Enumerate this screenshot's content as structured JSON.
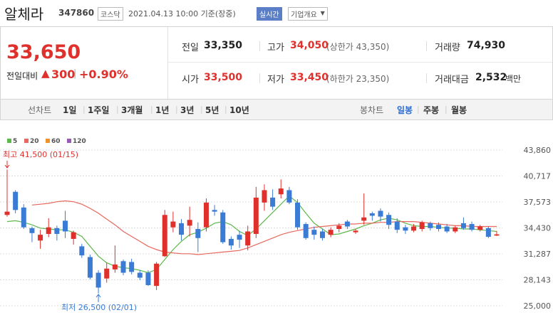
{
  "header": {
    "name": "알체라",
    "code": "347860",
    "market": "코스닥",
    "timestamp": "2021.04.13 10:00 기준(장중)",
    "realtime": "실시간",
    "company_info": "기업개요"
  },
  "quote": {
    "price": "33,650",
    "change_label": "전일대비",
    "change": "300",
    "change_pct": "+0.90%",
    "fields": [
      {
        "label": "전일",
        "value": "33,350"
      },
      {
        "label": "고가",
        "value": "34,050",
        "note": "(상한가 43,350)"
      },
      {
        "label": "거래량",
        "value": "74,930"
      },
      {
        "label": "시가",
        "value": "33,500"
      },
      {
        "label": "저가",
        "value": "33,450",
        "note": "(하한가 23,350)"
      },
      {
        "label": "거래대금",
        "value": "2,532",
        "unit": "백만"
      }
    ]
  },
  "tabs": {
    "line_chart": "선차트",
    "periods": [
      "1일",
      "1주일",
      "3개월",
      "1년",
      "3년",
      "5년",
      "10년"
    ],
    "candle_chart": "봉차트",
    "candle_periods": [
      "일봉",
      "주봉",
      "월봉"
    ]
  },
  "chart_data": {
    "type": "candlestick",
    "up_color": "#e0302c",
    "down_color": "#3a7bd5",
    "open": [
      36000,
      38800,
      36900,
      34400,
      32900,
      33700,
      34400,
      35300,
      33100,
      32200,
      30900,
      29000,
      28300,
      29400,
      30400,
      30300,
      29000,
      29000,
      27400,
      31000,
      34500,
      35000,
      34700,
      34300,
      34500,
      36600,
      36300,
      33100,
      33600,
      32300,
      33700,
      37500,
      38100,
      38500,
      39000,
      37500,
      34900,
      34200,
      34000,
      33600,
      34300,
      35200,
      33900,
      35300,
      36200,
      36500,
      36000,
      35200,
      34500,
      34100,
      34300,
      35000,
      34800,
      34600,
      34000,
      35000,
      34900,
      34200,
      34400,
      33500
    ],
    "high": [
      41500,
      39000,
      37300,
      34600,
      34200,
      35600,
      34700,
      36500,
      34100,
      32500,
      31200,
      29300,
      30200,
      32300,
      30600,
      30700,
      29300,
      29300,
      30300,
      36600,
      36400,
      35500,
      37000,
      35100,
      38000,
      37200,
      36600,
      33400,
      34100,
      34700,
      39400,
      39700,
      39100,
      40300,
      39400,
      37900,
      35100,
      34600,
      34300,
      34500,
      35000,
      35400,
      34300,
      38600,
      36400,
      36800,
      36300,
      35600,
      34800,
      34900,
      35300,
      35200,
      35100,
      34900,
      34700,
      35700,
      35200,
      34800,
      34600,
      34050
    ],
    "low": [
      35800,
      36200,
      34300,
      32700,
      31900,
      33300,
      32900,
      33200,
      32400,
      30800,
      28200,
      26500,
      27800,
      29000,
      28700,
      28800,
      28100,
      27400,
      26900,
      30900,
      33900,
      32900,
      33400,
      31500,
      34000,
      35900,
      32500,
      31800,
      32000,
      31700,
      33200,
      36500,
      36600,
      38000,
      37300,
      34200,
      33000,
      33000,
      32900,
      33300,
      33900,
      34300,
      33700,
      34800,
      35300,
      35200,
      34300,
      33800,
      33700,
      33900,
      34000,
      34100,
      34000,
      33800,
      33800,
      34200,
      34000,
      34000,
      33200,
      33450
    ],
    "close": [
      36400,
      36600,
      34500,
      33800,
      33600,
      34500,
      33700,
      34000,
      33900,
      31100,
      28400,
      27200,
      29500,
      30000,
      29000,
      29100,
      28400,
      27500,
      30100,
      36000,
      35200,
      33600,
      35400,
      33200,
      37500,
      36400,
      32700,
      32300,
      33000,
      34000,
      38100,
      39000,
      37000,
      39200,
      37500,
      34500,
      33200,
      33600,
      33200,
      34200,
      34700,
      34600,
      34100,
      35700,
      35900,
      35800,
      34800,
      34200,
      34100,
      34600,
      35100,
      34400,
      34300,
      34000,
      34500,
      34400,
      34200,
      34600,
      33350,
      33650
    ],
    "series": [
      {
        "name": "5",
        "color": "#5cb84a",
        "values": [
          35200,
          35300,
          35100,
          34800,
          34400,
          34300,
          34200,
          34200,
          33900,
          33400,
          32200,
          31000,
          30200,
          29800,
          29600,
          29500,
          29300,
          29000,
          29400,
          30600,
          31800,
          32800,
          33600,
          33900,
          34400,
          35000,
          35200,
          34800,
          34000,
          33500,
          34300,
          35300,
          36300,
          37300,
          38300,
          37500,
          36200,
          35000,
          34300,
          33600,
          33700,
          34000,
          34300,
          34700,
          35000,
          35400,
          35600,
          35400,
          35000,
          34700,
          34600,
          34600,
          34500,
          34400,
          34400,
          34300,
          34300,
          34200,
          34100,
          34000
        ]
      },
      {
        "name": "20",
        "color": "#e8675e",
        "values": [
          null,
          null,
          null,
          37200,
          37300,
          37400,
          37600,
          37700,
          37600,
          37300,
          36800,
          36200,
          35500,
          34800,
          34000,
          33400,
          32800,
          32200,
          31800,
          31500,
          31400,
          31300,
          31300,
          31200,
          31300,
          31400,
          31500,
          31600,
          31700,
          32000,
          32400,
          32800,
          33200,
          33600,
          33900,
          34100,
          34300,
          34500,
          34600,
          34700,
          34800,
          34900,
          34900,
          35000,
          35000,
          35100,
          35100,
          35200,
          35200,
          35200,
          35100,
          35000,
          34900,
          34800,
          34700,
          34700,
          34600,
          34600,
          34600,
          34600
        ]
      },
      {
        "name": "60",
        "color": "#f0922b",
        "values": [
          null,
          null,
          null,
          null,
          null,
          null,
          null,
          null,
          null,
          null,
          null,
          null,
          null,
          null,
          null,
          null,
          null,
          null,
          null,
          null,
          null,
          null,
          null,
          null,
          null,
          null,
          null,
          null,
          null,
          null,
          null,
          null,
          null,
          null,
          null,
          null,
          null,
          null,
          null,
          null,
          null,
          null,
          null,
          null,
          null,
          null,
          null,
          null,
          null,
          null,
          null,
          null,
          null,
          null,
          null,
          null,
          null,
          null,
          null,
          null
        ]
      },
      {
        "name": "120",
        "color": "#9b59b6",
        "values": [
          null,
          null,
          null,
          null,
          null,
          null,
          null,
          null,
          null,
          null,
          null,
          null,
          null,
          null,
          null,
          null,
          null,
          null,
          null,
          null,
          null,
          null,
          null,
          null,
          null,
          null,
          null,
          null,
          null,
          null,
          null,
          null,
          null,
          null,
          null,
          null,
          null,
          null,
          null,
          null,
          null,
          null,
          null,
          null,
          null,
          null,
          null,
          null,
          null,
          null,
          null,
          null,
          null,
          null,
          null,
          null,
          null,
          null,
          null,
          null
        ]
      }
    ],
    "ylim": [
      25000,
      43860
    ],
    "yticks": [
      {
        "value": 43860,
        "label": "43,860"
      },
      {
        "value": 40717,
        "label": "40,717"
      },
      {
        "value": 37573,
        "label": "37,573"
      },
      {
        "value": 34430,
        "label": "34,430"
      },
      {
        "value": 31287,
        "label": "31,287"
      },
      {
        "value": 28143,
        "label": "28,143"
      },
      {
        "value": 25000,
        "label": "25,000"
      }
    ],
    "grid": true,
    "annotations": [
      {
        "text": "최고 41,500 (01/15)",
        "color": "#e0302c"
      },
      {
        "text": "최저 26,500 (02/01)",
        "color": "#3a7bd5"
      }
    ]
  }
}
